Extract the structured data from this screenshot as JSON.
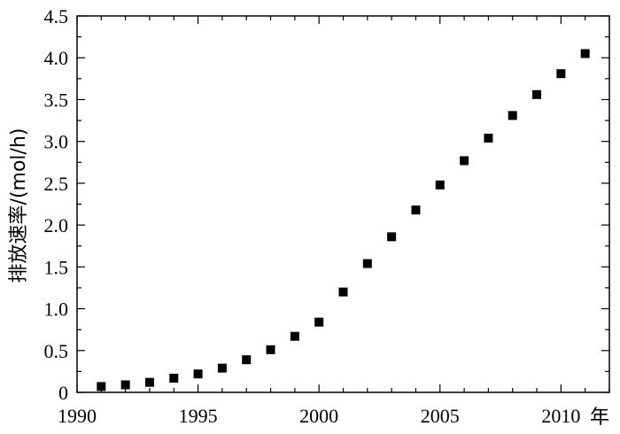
{
  "chart_data": {
    "type": "scatter",
    "title": "",
    "xlabel": "",
    "ylabel": "排放速率/(mol/h)",
    "x_unit": "年",
    "xlim": [
      1990,
      2012
    ],
    "ylim": [
      0,
      4.5
    ],
    "x_ticks": [
      1990,
      1995,
      2000,
      2005,
      2010
    ],
    "y_ticks": [
      "0",
      "0.5",
      "1.0",
      "1.5",
      "2.0",
      "2.5",
      "3.0",
      "3.5",
      "4.0",
      "4.5"
    ],
    "grid": false,
    "marker": "square",
    "marker_color": "#000000",
    "points": [
      {
        "x": 1991,
        "y": 0.07
      },
      {
        "x": 1992,
        "y": 0.09
      },
      {
        "x": 1993,
        "y": 0.12
      },
      {
        "x": 1994,
        "y": 0.17
      },
      {
        "x": 1995,
        "y": 0.22
      },
      {
        "x": 1996,
        "y": 0.29
      },
      {
        "x": 1997,
        "y": 0.39
      },
      {
        "x": 1998,
        "y": 0.51
      },
      {
        "x": 1999,
        "y": 0.67
      },
      {
        "x": 2000,
        "y": 0.84
      },
      {
        "x": 2001,
        "y": 1.2
      },
      {
        "x": 2002,
        "y": 1.54
      },
      {
        "x": 2003,
        "y": 1.86
      },
      {
        "x": 2004,
        "y": 2.18
      },
      {
        "x": 2005,
        "y": 2.48
      },
      {
        "x": 2006,
        "y": 2.77
      },
      {
        "x": 2007,
        "y": 3.04
      },
      {
        "x": 2008,
        "y": 3.31
      },
      {
        "x": 2009,
        "y": 3.56
      },
      {
        "x": 2010,
        "y": 3.81
      },
      {
        "x": 2011,
        "y": 4.05
      }
    ]
  }
}
